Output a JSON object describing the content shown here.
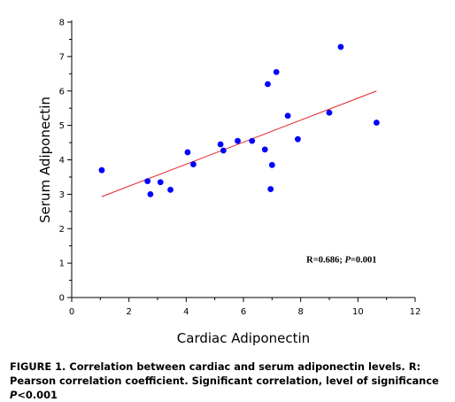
{
  "chart_data": {
    "type": "scatter",
    "xlabel": "Cardiac Adiponectin",
    "ylabel": "Serum Adiponectin",
    "xlim": [
      0,
      12
    ],
    "ylim": [
      0,
      8
    ],
    "xticks": [
      0,
      2,
      4,
      6,
      8,
      10,
      12
    ],
    "yticks": [
      0,
      1,
      2,
      3,
      4,
      5,
      6,
      7,
      8
    ],
    "grid": false,
    "marker_color": "#0000ff",
    "fit_line_color": "#e8222a",
    "points": [
      {
        "x": 1.05,
        "y": 3.7
      },
      {
        "x": 2.65,
        "y": 3.38
      },
      {
        "x": 2.75,
        "y": 3.0
      },
      {
        "x": 3.1,
        "y": 3.35
      },
      {
        "x": 3.45,
        "y": 3.13
      },
      {
        "x": 4.05,
        "y": 4.22
      },
      {
        "x": 4.25,
        "y": 3.87
      },
      {
        "x": 5.2,
        "y": 4.45
      },
      {
        "x": 5.3,
        "y": 4.27
      },
      {
        "x": 5.8,
        "y": 4.55
      },
      {
        "x": 6.3,
        "y": 4.55
      },
      {
        "x": 6.75,
        "y": 4.3
      },
      {
        "x": 6.85,
        "y": 6.2
      },
      {
        "x": 6.95,
        "y": 3.15
      },
      {
        "x": 7.0,
        "y": 3.85
      },
      {
        "x": 7.15,
        "y": 6.55
      },
      {
        "x": 7.55,
        "y": 5.28
      },
      {
        "x": 7.9,
        "y": 4.6
      },
      {
        "x": 9.0,
        "y": 5.37
      },
      {
        "x": 9.4,
        "y": 7.28
      },
      {
        "x": 10.65,
        "y": 5.08
      }
    ],
    "fit_line": {
      "x1": 1.05,
      "y1": 2.93,
      "x2": 10.65,
      "y2": 6.0
    },
    "annotation": {
      "text_plain": "R=0.686; ",
      "text_italic": "P",
      "text_rest": "=0.001",
      "x": 8.2,
      "y": 1.02
    }
  },
  "caption": {
    "text_before_italic": "FIGURE 1. Correlation between cardiac and serum adiponectin levels. R: Pearson correlation coefficient. Significant correlation, level of significance ",
    "italic": "P",
    "text_after_italic": "<0.001"
  }
}
